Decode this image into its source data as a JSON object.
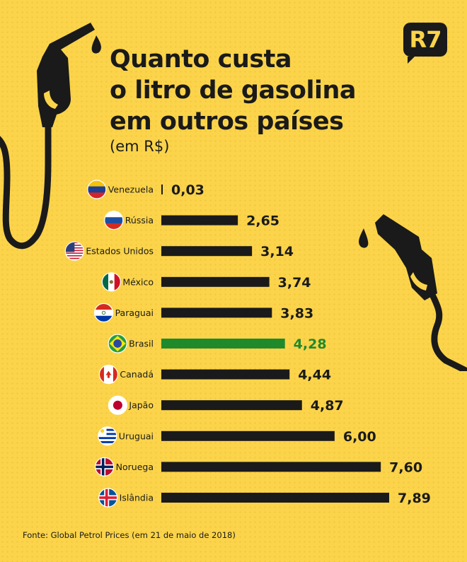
{
  "logo": "R7",
  "title_lines": [
    "Quanto custa",
    "o litro de gasolina",
    "em outros países"
  ],
  "subtitle": "(em R$)",
  "source": "Fonte: Global Petrol Prices (em 21 de maio de 2018)",
  "colors": {
    "background": "#fbd44b",
    "bar": "#1a1a1a",
    "highlight": "#1f8a2c"
  },
  "chart_data": {
    "type": "bar",
    "orientation": "horizontal",
    "unit": "R$",
    "highlight": "Brasil",
    "categories": [
      "Venezuela",
      "Rússia",
      "Estados Unidos",
      "México",
      "Paraguai",
      "Brasil",
      "Canadá",
      "Japão",
      "Uruguai",
      "Noruega",
      "Islândia"
    ],
    "values": [
      0.03,
      2.65,
      3.14,
      3.74,
      3.83,
      4.28,
      4.44,
      4.87,
      6.0,
      7.6,
      7.89
    ],
    "value_labels": [
      "0,03",
      "2,65",
      "3,14",
      "3,74",
      "3,83",
      "4,28",
      "4,44",
      "4,87",
      "6,00",
      "7,60",
      "7,89"
    ],
    "flags": [
      "venezuela-flag",
      "russia-flag",
      "usa-flag",
      "mexico-flag",
      "paraguay-flag",
      "brazil-flag",
      "canada-flag",
      "japan-flag",
      "uruguay-flag",
      "norway-flag",
      "iceland-flag"
    ]
  }
}
